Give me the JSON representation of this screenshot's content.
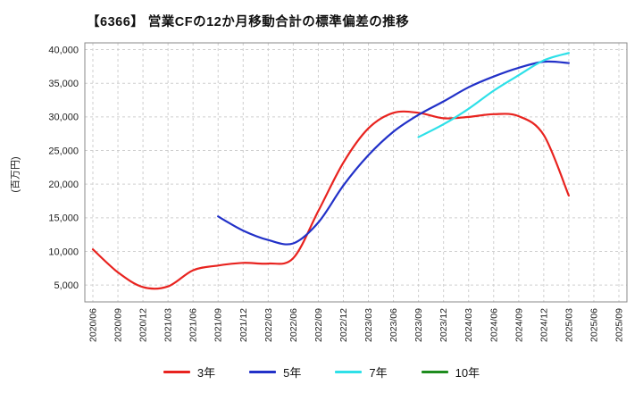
{
  "chart_data": {
    "type": "line",
    "title": "【6366】 営業CFの12か月移動合計の標準偏差の推移",
    "ylabel": "(百万円)",
    "xlabel": "",
    "ylim": [
      2500,
      41000
    ],
    "yticks": [
      5000,
      10000,
      15000,
      20000,
      25000,
      30000,
      35000,
      40000
    ],
    "grid": "dashed",
    "legend_position": "bottom",
    "categories": [
      "2020/06",
      "2020/09",
      "2020/12",
      "2021/03",
      "2021/06",
      "2021/09",
      "2021/12",
      "2022/03",
      "2022/06",
      "2022/09",
      "2022/12",
      "2023/03",
      "2023/06",
      "2023/09",
      "2023/12",
      "2024/03",
      "2024/06",
      "2024/09",
      "2024/12",
      "2025/03",
      "2025/06",
      "2025/09"
    ],
    "series": [
      {
        "name": "3年",
        "color": "#e8231f",
        "values": [
          10300,
          6900,
          4700,
          4800,
          7200,
          7900,
          8300,
          8200,
          9000,
          16000,
          23200,
          28300,
          30600,
          30600,
          29800,
          30000,
          30400,
          30100,
          27300,
          18300,
          null,
          null
        ]
      },
      {
        "name": "5年",
        "color": "#2231c8",
        "values": [
          null,
          null,
          null,
          null,
          null,
          15200,
          13100,
          11700,
          11200,
          14300,
          19800,
          24300,
          27800,
          30300,
          32300,
          34400,
          36000,
          37300,
          38200,
          38000,
          null,
          null
        ]
      },
      {
        "name": "7年",
        "color": "#2ee0e8",
        "values": [
          null,
          null,
          null,
          null,
          null,
          null,
          null,
          null,
          null,
          null,
          null,
          null,
          null,
          27000,
          28900,
          31200,
          33900,
          36200,
          38400,
          39500,
          null,
          null
        ]
      },
      {
        "name": "10年",
        "color": "#1e8c1e",
        "values": [
          null,
          null,
          null,
          null,
          null,
          null,
          null,
          null,
          null,
          null,
          null,
          null,
          null,
          null,
          null,
          null,
          null,
          null,
          null,
          null,
          null,
          null
        ]
      }
    ]
  }
}
